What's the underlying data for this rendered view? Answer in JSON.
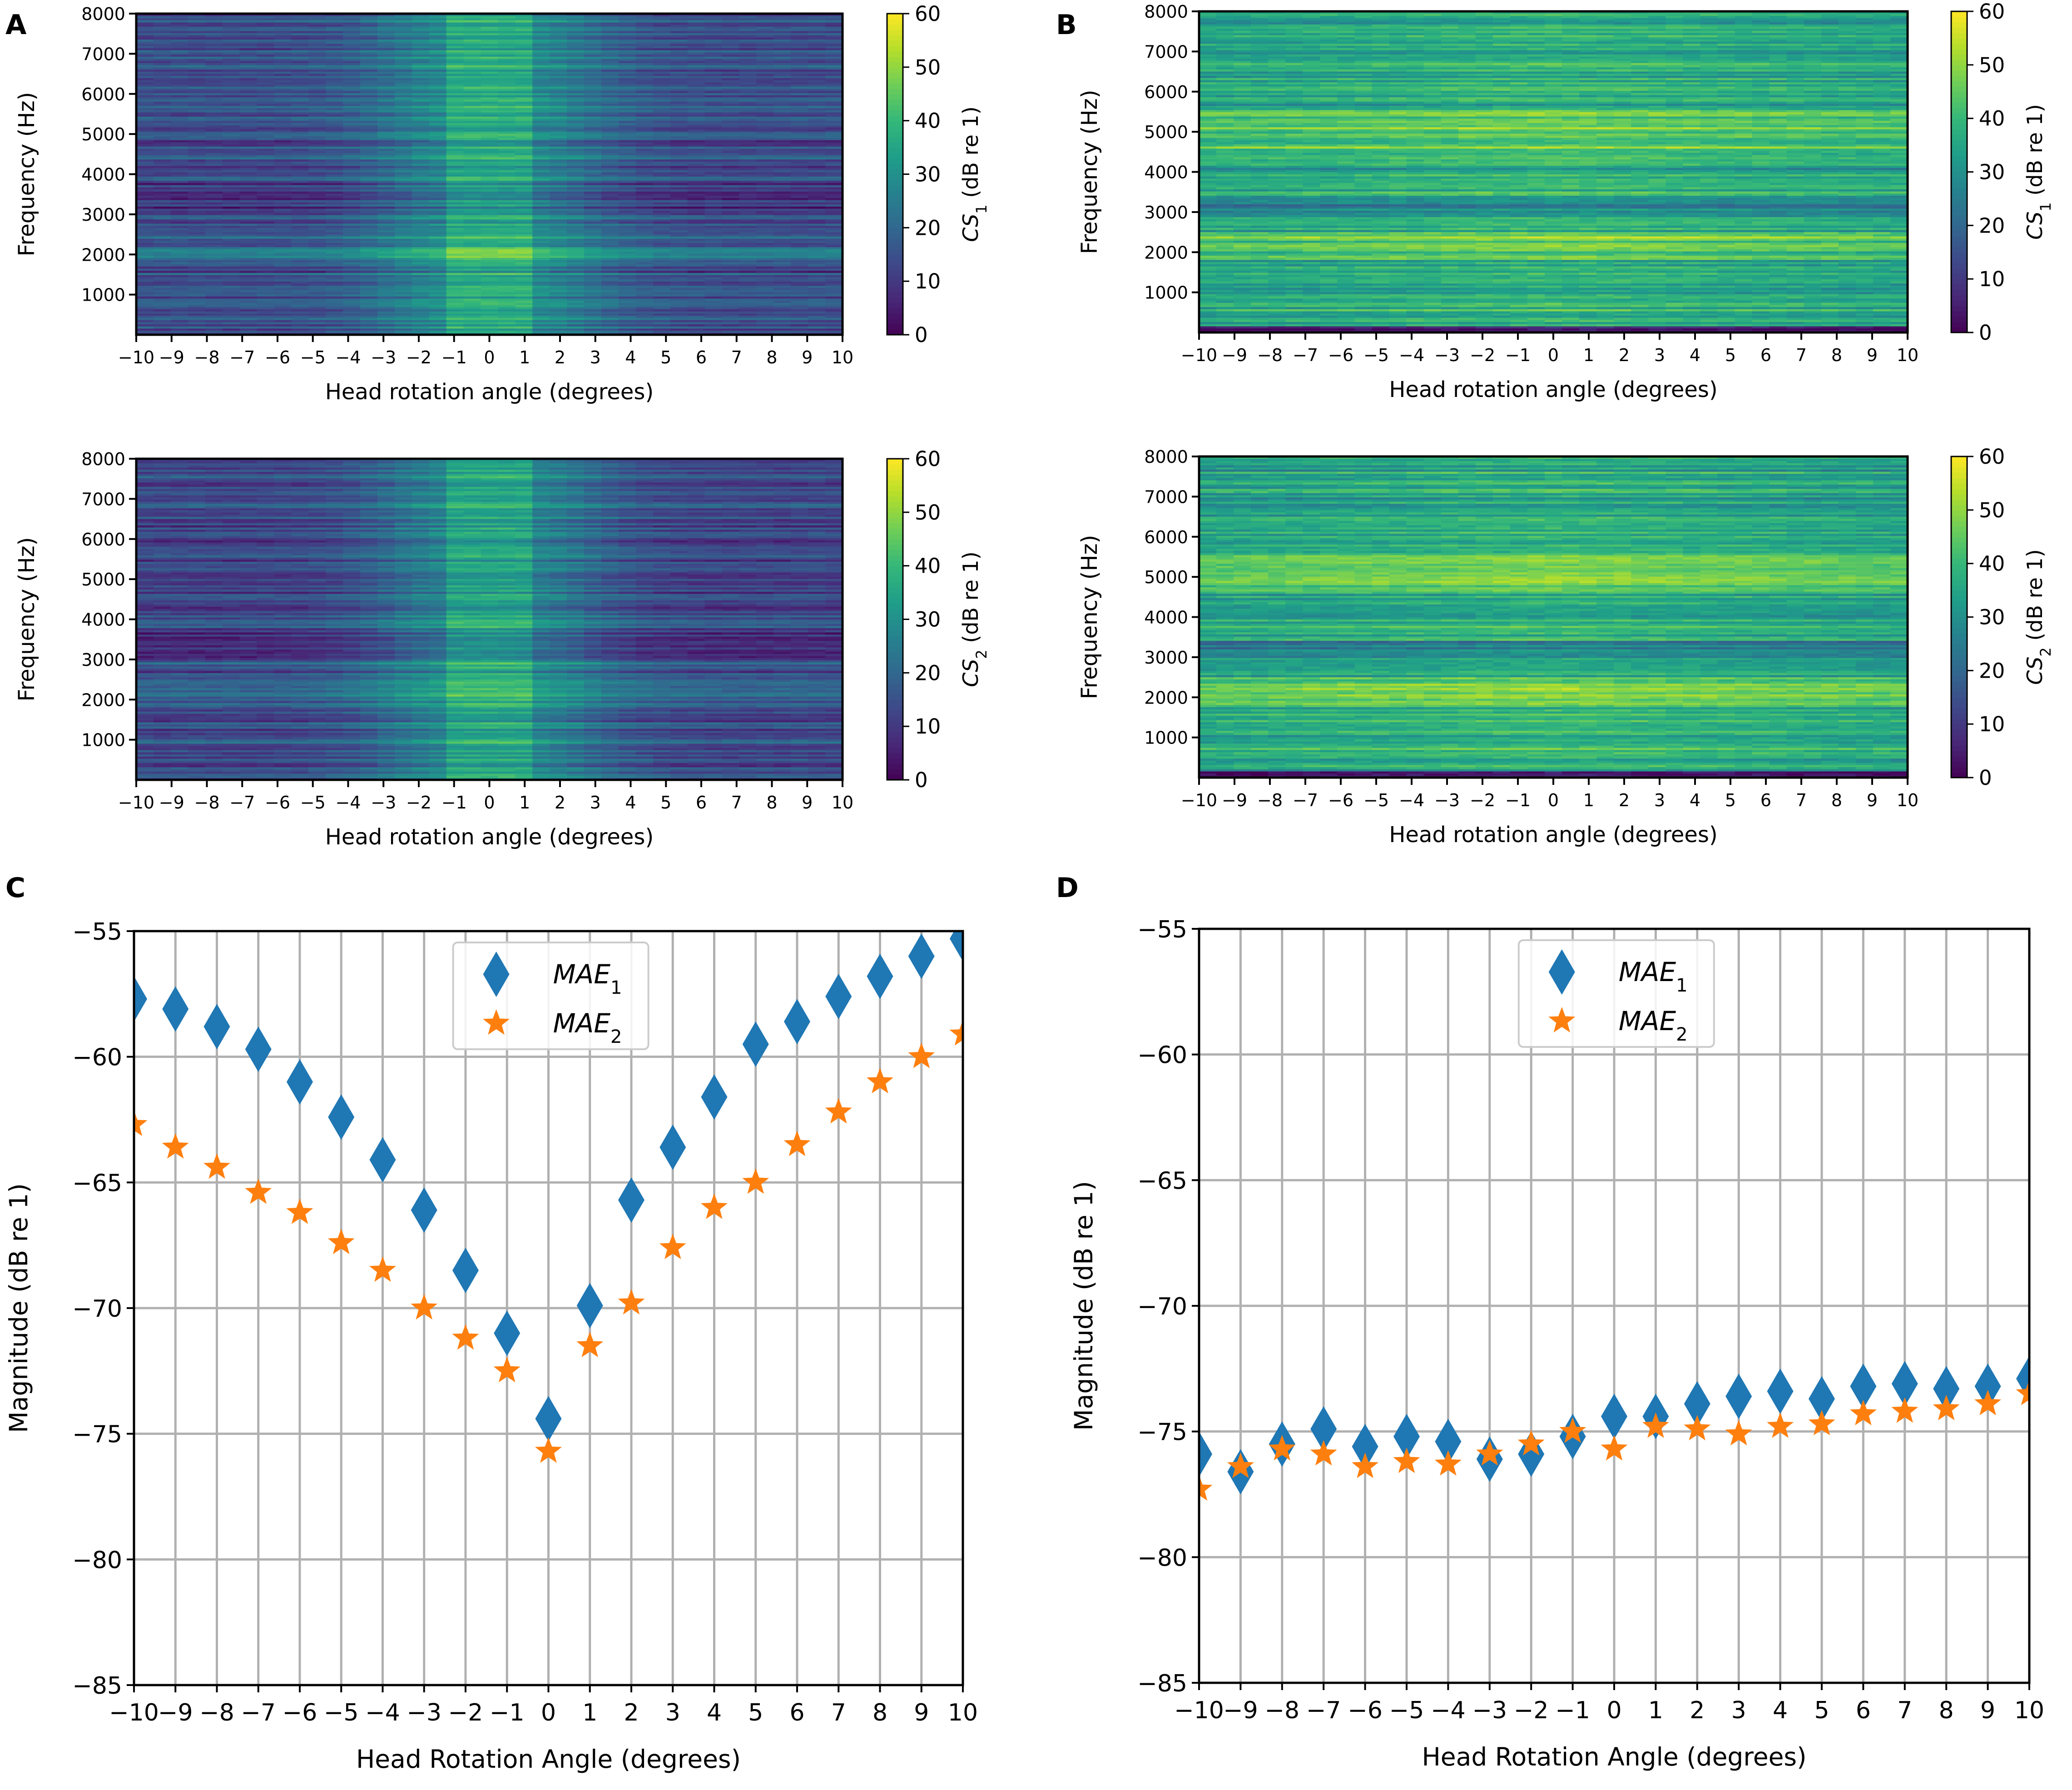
{
  "figure": {
    "panel_labels": [
      "A",
      "B",
      "C",
      "D"
    ]
  },
  "colors": {
    "mae1": "#1f77b4",
    "mae2": "#ff7f0e",
    "grid": "#b0b0b0",
    "viridis": [
      "#440154",
      "#482878",
      "#3e4989",
      "#31688e",
      "#26828e",
      "#1f9e89",
      "#35b779",
      "#6ece58",
      "#b5de2b",
      "#fde725"
    ]
  },
  "chart_data": [
    {
      "id": "A1",
      "panel": "A",
      "type": "heatmap",
      "xlabel": "Head rotation angle (degrees)",
      "ylabel": "Frequency (Hz)",
      "x_ticks": [
        -10,
        -9,
        -8,
        -7,
        -6,
        -5,
        -4,
        -3,
        -2,
        -1,
        0,
        1,
        2,
        3,
        4,
        5,
        6,
        7,
        8,
        9,
        10
      ],
      "y_ticks": [
        1000,
        2000,
        3000,
        4000,
        5000,
        6000,
        7000,
        8000
      ],
      "xlim": [
        -10,
        10
      ],
      "ylim": [
        0,
        8000
      ],
      "colorbar": {
        "label_main": "CS",
        "label_sub": "1",
        "label_unit": " (dB re 1)",
        "ticks": [
          0,
          10,
          20,
          30,
          40,
          50,
          60
        ],
        "range": [
          0,
          60
        ]
      },
      "pattern": "peak-near-zero"
    },
    {
      "id": "A2",
      "panel": "A",
      "type": "heatmap",
      "xlabel": "Head rotation angle (degrees)",
      "ylabel": "Frequency (Hz)",
      "x_ticks": [
        -10,
        -9,
        -8,
        -7,
        -6,
        -5,
        -4,
        -3,
        -2,
        -1,
        0,
        1,
        2,
        3,
        4,
        5,
        6,
        7,
        8,
        9,
        10
      ],
      "y_ticks": [
        1000,
        2000,
        3000,
        4000,
        5000,
        6000,
        7000,
        8000
      ],
      "xlim": [
        -10,
        10
      ],
      "ylim": [
        0,
        8000
      ],
      "colorbar": {
        "label_main": "CS",
        "label_sub": "2",
        "label_unit": " (dB re 1)",
        "ticks": [
          0,
          10,
          20,
          30,
          40,
          50,
          60
        ],
        "range": [
          0,
          60
        ]
      },
      "pattern": "peak-near-zero"
    },
    {
      "id": "B1",
      "panel": "B",
      "type": "heatmap",
      "xlabel": "Head rotation angle (degrees)",
      "ylabel": "Frequency (Hz)",
      "x_ticks": [
        -10,
        -9,
        -8,
        -7,
        -6,
        -5,
        -4,
        -3,
        -2,
        -1,
        0,
        1,
        2,
        3,
        4,
        5,
        6,
        7,
        8,
        9,
        10
      ],
      "y_ticks": [
        1000,
        2000,
        3000,
        4000,
        5000,
        6000,
        7000,
        8000
      ],
      "xlim": [
        -10,
        10
      ],
      "ylim": [
        0,
        8000
      ],
      "colorbar": {
        "label_main": "CS",
        "label_sub": "1",
        "label_unit": " (dB re 1)",
        "ticks": [
          0,
          10,
          20,
          30,
          40,
          50,
          60
        ],
        "range": [
          0,
          60
        ]
      },
      "pattern": "broad"
    },
    {
      "id": "B2",
      "panel": "B",
      "type": "heatmap",
      "xlabel": "Head rotation angle (degrees)",
      "ylabel": "Frequency (Hz)",
      "x_ticks": [
        -10,
        -9,
        -8,
        -7,
        -6,
        -5,
        -4,
        -3,
        -2,
        -1,
        0,
        1,
        2,
        3,
        4,
        5,
        6,
        7,
        8,
        9,
        10
      ],
      "y_ticks": [
        1000,
        2000,
        3000,
        4000,
        5000,
        6000,
        7000,
        8000
      ],
      "xlim": [
        -10,
        10
      ],
      "ylim": [
        0,
        8000
      ],
      "colorbar": {
        "label_main": "CS",
        "label_sub": "2",
        "label_unit": " (dB re 1)",
        "ticks": [
          0,
          10,
          20,
          30,
          40,
          50,
          60
        ],
        "range": [
          0,
          60
        ]
      },
      "pattern": "broad"
    },
    {
      "id": "C",
      "panel": "C",
      "type": "scatter",
      "xlabel": "Head Rotation Angle (degrees)",
      "ylabel": "Magnitude (dB re 1)",
      "xlim": [
        -10,
        10
      ],
      "ylim": [
        -85,
        -55
      ],
      "x_ticks": [
        -10,
        -9,
        -8,
        -7,
        -6,
        -5,
        -4,
        -3,
        -2,
        -1,
        0,
        1,
        2,
        3,
        4,
        5,
        6,
        7,
        8,
        9,
        10
      ],
      "y_ticks": [
        -85,
        -80,
        -75,
        -70,
        -65,
        -60,
        -55
      ],
      "legend": "upper-center",
      "x": [
        -10,
        -9,
        -8,
        -7,
        -6,
        -5,
        -4,
        -3,
        -2,
        -1,
        0,
        1,
        2,
        3,
        4,
        5,
        6,
        7,
        8,
        9,
        10
      ],
      "series": [
        {
          "name": "MAE",
          "sub": "1",
          "marker": "diamond",
          "values": [
            -57.7,
            -58.1,
            -58.8,
            -59.7,
            -61.0,
            -62.4,
            -64.1,
            -66.1,
            -68.5,
            -71.0,
            -74.4,
            -69.9,
            -65.7,
            -63.6,
            -61.6,
            -59.5,
            -58.6,
            -57.6,
            -56.8,
            -56.0,
            -55.3
          ]
        },
        {
          "name": "MAE",
          "sub": "2",
          "marker": "star",
          "values": [
            -62.7,
            -63.6,
            -64.4,
            -65.4,
            -66.2,
            -67.4,
            -68.5,
            -70.0,
            -71.2,
            -72.5,
            -75.7,
            -71.5,
            -69.8,
            -67.6,
            -66.0,
            -65.0,
            -63.5,
            -62.2,
            -61.0,
            -60.0,
            -59.1
          ]
        }
      ]
    },
    {
      "id": "D",
      "panel": "D",
      "type": "scatter",
      "xlabel": "Head Rotation Angle (degrees)",
      "ylabel": "Magnitude (dB re 1)",
      "xlim": [
        -10,
        10
      ],
      "ylim": [
        -85,
        -55
      ],
      "x_ticks": [
        -10,
        -9,
        -8,
        -7,
        -6,
        -5,
        -4,
        -3,
        -2,
        -1,
        0,
        1,
        2,
        3,
        4,
        5,
        6,
        7,
        8,
        9,
        10
      ],
      "y_ticks": [
        -85,
        -80,
        -75,
        -70,
        -65,
        -60,
        -55
      ],
      "legend": "upper-center",
      "x": [
        -10,
        -9,
        -8,
        -7,
        -6,
        -5,
        -4,
        -3,
        -2,
        -1,
        0,
        1,
        2,
        3,
        4,
        5,
        6,
        7,
        8,
        9,
        10
      ],
      "series": [
        {
          "name": "MAE",
          "sub": "1",
          "marker": "diamond",
          "values": [
            -75.9,
            -76.6,
            -75.5,
            -74.9,
            -75.6,
            -75.2,
            -75.4,
            -76.1,
            -75.9,
            -75.2,
            -74.4,
            -74.4,
            -73.9,
            -73.6,
            -73.4,
            -73.7,
            -73.2,
            -73.1,
            -73.3,
            -73.2,
            -72.9
          ]
        },
        {
          "name": "MAE",
          "sub": "2",
          "marker": "star",
          "values": [
            -77.3,
            -76.4,
            -75.7,
            -75.9,
            -76.4,
            -76.2,
            -76.3,
            -75.9,
            -75.5,
            -75.0,
            -75.7,
            -74.8,
            -74.9,
            -75.1,
            -74.8,
            -74.7,
            -74.3,
            -74.2,
            -74.1,
            -73.9,
            -73.5
          ]
        }
      ]
    }
  ]
}
